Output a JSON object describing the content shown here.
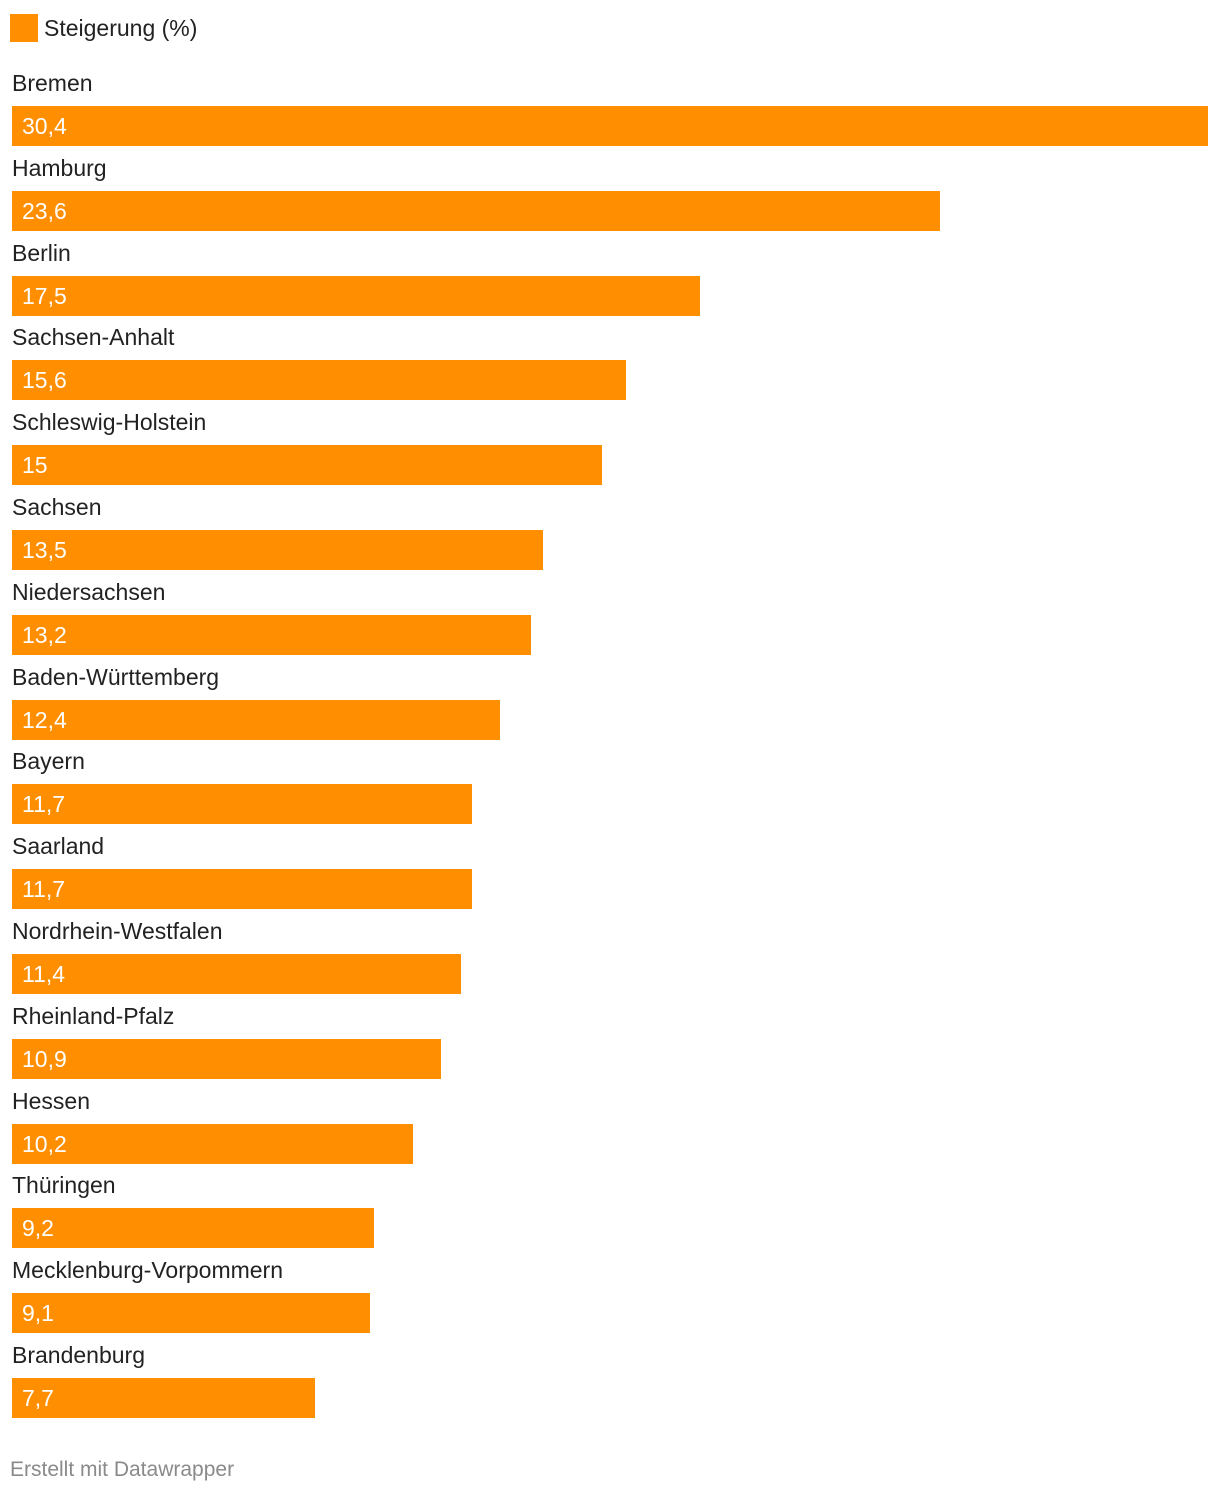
{
  "legend": {
    "label": "Steigerung (%)",
    "color": "#ff8e00"
  },
  "chart_data": {
    "type": "bar",
    "orientation": "horizontal",
    "series": [
      {
        "name": "Steigerung (%)",
        "color": "#ff8e00",
        "values": [
          30.4,
          23.6,
          17.5,
          15.6,
          15,
          13.5,
          13.2,
          12.4,
          11.7,
          11.7,
          11.4,
          10.9,
          10.2,
          9.2,
          9.1,
          7.7
        ]
      }
    ],
    "categories": [
      "Bremen",
      "Hamburg",
      "Berlin",
      "Sachsen-Anhalt",
      "Schleswig-Holstein",
      "Sachsen",
      "Niedersachsen",
      "Baden-Württemberg",
      "Bayern",
      "Saarland",
      "Nordrhein-Westfalen",
      "Rheinland-Pfalz",
      "Hessen",
      "Thüringen",
      "Mecklenburg-Vorpommern",
      "Brandenburg"
    ],
    "value_labels": [
      "30,4",
      "23,6",
      "17,5",
      "15,6",
      "15",
      "13,5",
      "13,2",
      "12,4",
      "11,7",
      "11,7",
      "11,4",
      "10,9",
      "10,2",
      "9,2",
      "9,1",
      "7,7"
    ],
    "xlim": [
      0,
      30.4
    ],
    "grid": false,
    "legend_position": "top-left"
  },
  "footer": {
    "credit": "Erstellt mit Datawrapper"
  }
}
